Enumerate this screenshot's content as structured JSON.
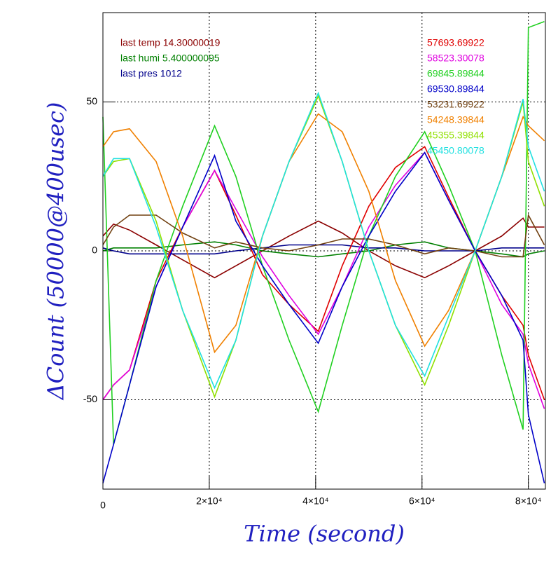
{
  "chart_data": {
    "type": "line",
    "xlabel": "Time (second)",
    "ylabel": "ΔCount (50000@400usec)",
    "x": [
      0,
      2000,
      5000,
      10000,
      15000,
      21000,
      25000,
      30000,
      35000,
      40500,
      45000,
      50000,
      55000,
      60500,
      65000,
      70000,
      75000,
      79000,
      80000,
      83000
    ],
    "xlim": [
      0,
      83200
    ],
    "ylim": [
      -80,
      80
    ],
    "xticks": [
      0,
      {
        "value": 20000,
        "label": "2×10⁴"
      },
      {
        "value": 40000,
        "label": "4×10⁴"
      },
      {
        "value": 60000,
        "label": "6×10⁴"
      },
      {
        "value": 80000,
        "label": "8×10⁴"
      }
    ],
    "yticks": [
      -50,
      0,
      50
    ],
    "grid": true,
    "series": [
      {
        "name": "last temp 14.30000019",
        "color": "#8b0000",
        "values": [
          5,
          9,
          7,
          2,
          -3,
          -9,
          -5,
          0,
          5,
          10,
          6,
          0,
          -5,
          -9,
          -5,
          0,
          5,
          11,
          8,
          8
        ]
      },
      {
        "name": "last humi 5.400000095",
        "color": "#008000",
        "values": [
          0,
          1,
          1,
          1,
          2,
          3,
          2,
          0,
          -1,
          -2,
          -1,
          0,
          2,
          3,
          1,
          0,
          -1,
          -2,
          -1,
          0
        ]
      },
      {
        "name": "last pres 1012",
        "color": "#00008b",
        "values": [
          1,
          0,
          -1,
          -1,
          -1,
          -1,
          0,
          1,
          2,
          2,
          2,
          1,
          1,
          0,
          0,
          0,
          1,
          1,
          1,
          1
        ]
      },
      {
        "name": "57693.69922",
        "color": "#e00000",
        "values": [
          -50,
          -45,
          -40,
          -10,
          8,
          27,
          12,
          -8,
          -18,
          -27,
          -5,
          15,
          28,
          35,
          18,
          0,
          -15,
          -25,
          -35,
          -50
        ]
      },
      {
        "name": "58523.30078",
        "color": "#e000e0",
        "values": [
          -50,
          -45,
          -40,
          -12,
          8,
          27,
          14,
          -2,
          -15,
          -28,
          -12,
          8,
          22,
          33,
          17,
          0,
          -18,
          -28,
          -38,
          -53
        ]
      },
      {
        "name": "69845.89844",
        "color": "#20d020",
        "values": [
          45,
          -65,
          -45,
          -10,
          15,
          42,
          25,
          -5,
          -30,
          -54,
          -25,
          5,
          25,
          40,
          22,
          0,
          -35,
          -60,
          75,
          77
        ]
      },
      {
        "name": "69530.89844",
        "color": "#0000c8",
        "values": [
          -78,
          -65,
          -45,
          -12,
          8,
          32,
          10,
          -5,
          -18,
          -31,
          -12,
          5,
          20,
          33,
          17,
          0,
          -15,
          -30,
          -55,
          -78
        ]
      },
      {
        "name": "53231.69922",
        "color": "#704010",
        "values": [
          2,
          8,
          12,
          12,
          6,
          1,
          3,
          1,
          0,
          2,
          4,
          4,
          2,
          -1,
          1,
          0,
          -2,
          -2,
          12,
          2
        ]
      },
      {
        "name": "54248.39844",
        "color": "#f08000",
        "values": [
          35,
          40,
          41,
          30,
          5,
          -34,
          -25,
          5,
          30,
          46,
          40,
          20,
          -10,
          -32,
          -20,
          0,
          25,
          45,
          42,
          37
        ]
      },
      {
        "name": "45355.39844",
        "color": "#90e000",
        "values": [
          25,
          30,
          31,
          10,
          -20,
          -49,
          -30,
          5,
          30,
          52,
          30,
          0,
          -25,
          -45,
          -25,
          0,
          25,
          50,
          30,
          15
        ]
      },
      {
        "name": "45450.80078",
        "color": "#20e0e0",
        "values": [
          25,
          31,
          31,
          8,
          -20,
          -46,
          -30,
          5,
          30,
          53,
          30,
          0,
          -25,
          -42,
          -22,
          0,
          25,
          51,
          35,
          20
        ]
      }
    ]
  }
}
